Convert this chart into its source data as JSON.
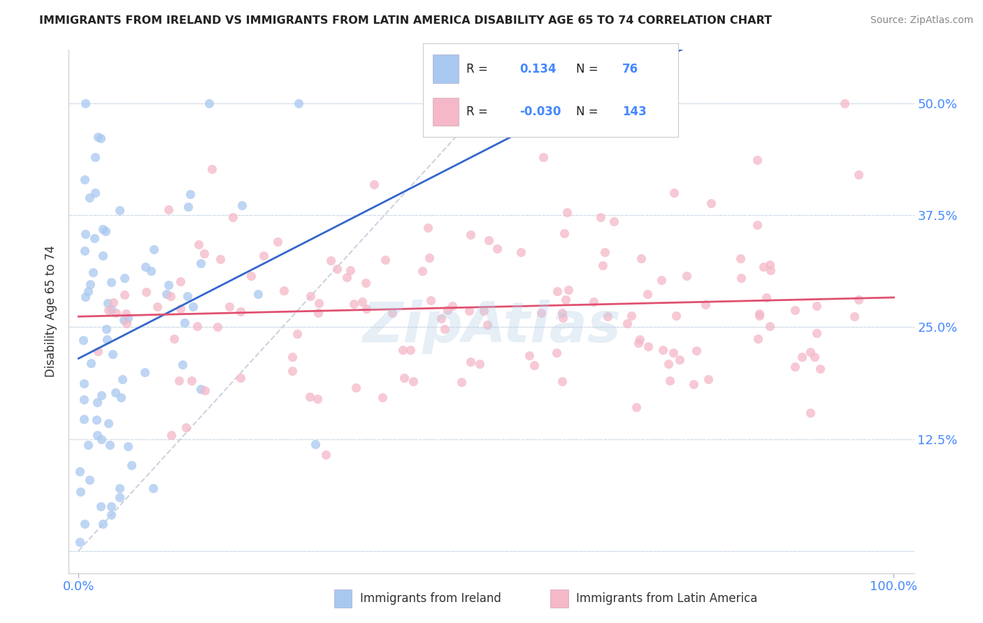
{
  "title": "IMMIGRANTS FROM IRELAND VS IMMIGRANTS FROM LATIN AMERICA DISABILITY AGE 65 TO 74 CORRELATION CHART",
  "source": "Source: ZipAtlas.com",
  "ylabel": "Disability Age 65 to 74",
  "legend": {
    "ireland_r": "0.134",
    "ireland_n": "76",
    "latinam_r": "-0.030",
    "latinam_n": "143"
  },
  "ireland_color": "#a8c8f0",
  "latinam_color": "#f4b8c8",
  "ireland_line_color": "#3366cc",
  "latinam_line_color": "#e05070",
  "diagonal_color": "#c0c8d8",
  "watermark_color": "#b8d0e8",
  "background_color": "#ffffff",
  "grid_color": "#e0e8f0",
  "tick_color": "#4488ff",
  "label_color": "#333333",
  "title_color": "#222222",
  "source_color": "#888888"
}
